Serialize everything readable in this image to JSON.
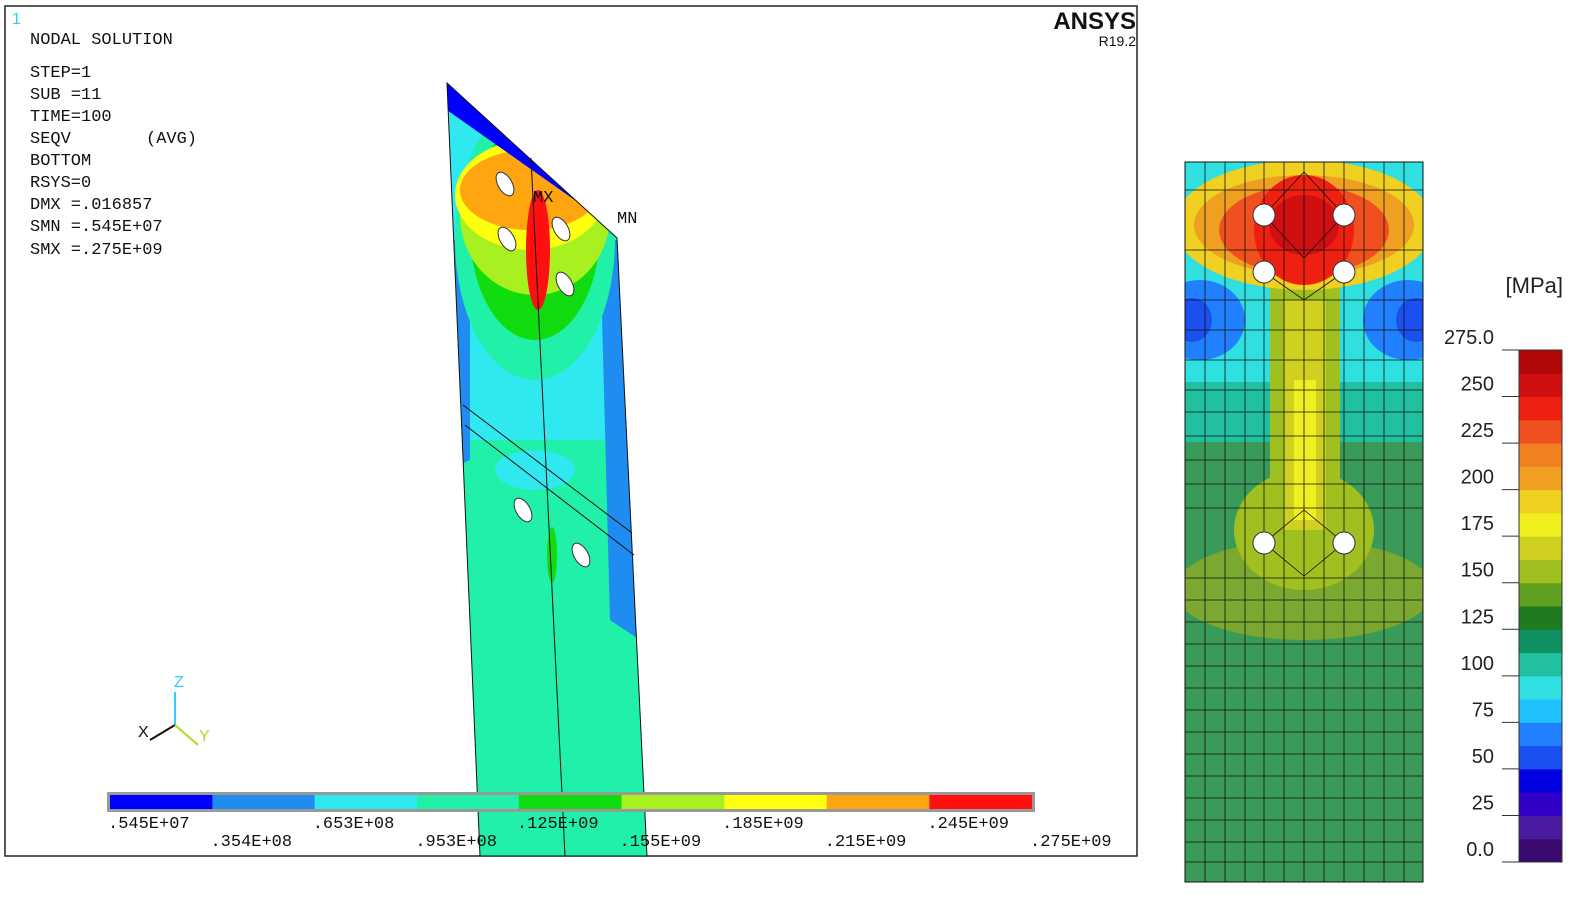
{
  "viewport": {
    "window_number": "1",
    "title": "NODAL SOLUTION",
    "info": [
      "STEP=1",
      "SUB =11",
      "TIME=100",
      "SEQV",
      "(AVG)",
      "BOTTOM",
      "RSYS=0",
      "DMX =.016857",
      "SMN =.545E+07",
      "SMX =.275E+09"
    ],
    "brand": "ANSYS",
    "version": "R19.2",
    "max_marker": "MX",
    "min_marker": "MN",
    "axes": [
      "Z",
      "X",
      "Y"
    ]
  },
  "legend": {
    "lim": [
      5450000,
      275000000
    ],
    "ticks": [
      {
        "value": 5450000,
        "label": ".545E+07"
      },
      {
        "value": 35400000,
        "label": ".354E+08"
      },
      {
        "value": 65300000,
        "label": ".653E+08"
      },
      {
        "value": 95300000,
        "label": ".953E+08"
      },
      {
        "value": 125000000,
        "label": ".125E+09"
      },
      {
        "value": 155000000,
        "label": ".155E+09"
      },
      {
        "value": 185000000,
        "label": ".185E+09"
      },
      {
        "value": 215000000,
        "label": ".215E+09"
      },
      {
        "value": 245000000,
        "label": ".245E+09"
      },
      {
        "value": 275000000,
        "label": ".275E+09"
      }
    ],
    "colors": [
      "#0000ff",
      "#1e8cf0",
      "#30e8f0",
      "#20f0a8",
      "#10dc10",
      "#a8f020",
      "#ffff10",
      "#ffa510",
      "#ff1010"
    ]
  },
  "colorbar": {
    "unit": "[MPa]",
    "lim": [
      0,
      275
    ],
    "ticks": [
      {
        "value": 275,
        "label": "275.0"
      },
      250,
      225,
      200,
      175,
      150,
      125,
      100,
      75,
      50,
      25,
      {
        "value": 0,
        "label": "0.0"
      }
    ],
    "colors": [
      "#3b0a6e",
      "#4a1aa0",
      "#3000c8",
      "#0000e0",
      "#1a50f0",
      "#2080ff",
      "#20c0ff",
      "#30e0e0",
      "#20c0a0",
      "#109060",
      "#207a20",
      "#60a020",
      "#a0c020",
      "#d0d020",
      "#f0f020",
      "#f0d020",
      "#f0a020",
      "#f08020",
      "#f05020",
      "#f02010",
      "#d01010",
      "#b00808"
    ]
  }
}
